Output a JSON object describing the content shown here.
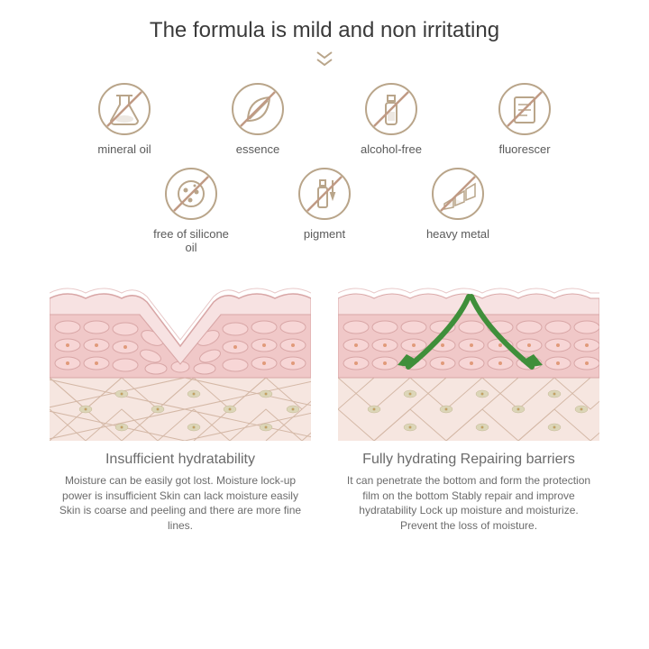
{
  "title": "The formula is mild and non irritating",
  "colors": {
    "title": "#3a3a3a",
    "icon_stroke": "#b9a58a",
    "icon_slash": "#c09a84",
    "icon_label": "#5a5a5a",
    "arrow": "#b9a58a",
    "diag_title": "#6b6b6b",
    "diag_text": "#6b6b6b",
    "skin_light": "#f7e2e2",
    "skin_mid": "#f0c8c8",
    "skin_outline": "#d8a6a6",
    "skin_deep": "#f6e6e0",
    "cell_dot": "#e09a7a",
    "green_arrow": "#3f8f3a",
    "diamond_line": "#d4b8a6",
    "eye_fill": "#dcd6b8"
  },
  "icons": {
    "row1": [
      {
        "name": "mineral-oil-icon",
        "label": "mineral oil",
        "glyph": "flask"
      },
      {
        "name": "essence-icon",
        "label": "essence",
        "glyph": "leaf"
      },
      {
        "name": "alcohol-free-icon",
        "label": "alcohol-free",
        "glyph": "bottle"
      },
      {
        "name": "fluorescer-icon",
        "label": "fluorescer",
        "glyph": "sheet"
      }
    ],
    "row2": [
      {
        "name": "silicone-oil-icon",
        "label": "free of silicone oil",
        "glyph": "molecule"
      },
      {
        "name": "pigment-icon",
        "label": "pigment",
        "glyph": "dropper"
      },
      {
        "name": "heavy-metal-icon",
        "label": "heavy metal",
        "glyph": "bars"
      }
    ]
  },
  "diagrams": {
    "left": {
      "title": "Insufficient hydratability",
      "desc": "Moisture can be easily got lost. Moisture lock-up power is insufficient Skin can lack moisture easily Skin is coarse and peeling and there are more fine lines."
    },
    "right": {
      "title": "Fully hydrating Repairing barriers",
      "desc": "It can penetrate the bottom and form the protection film on the bottom Stably repair and improve hydratability Lock up moisture and moisturize. Prevent the loss of moisture."
    }
  }
}
